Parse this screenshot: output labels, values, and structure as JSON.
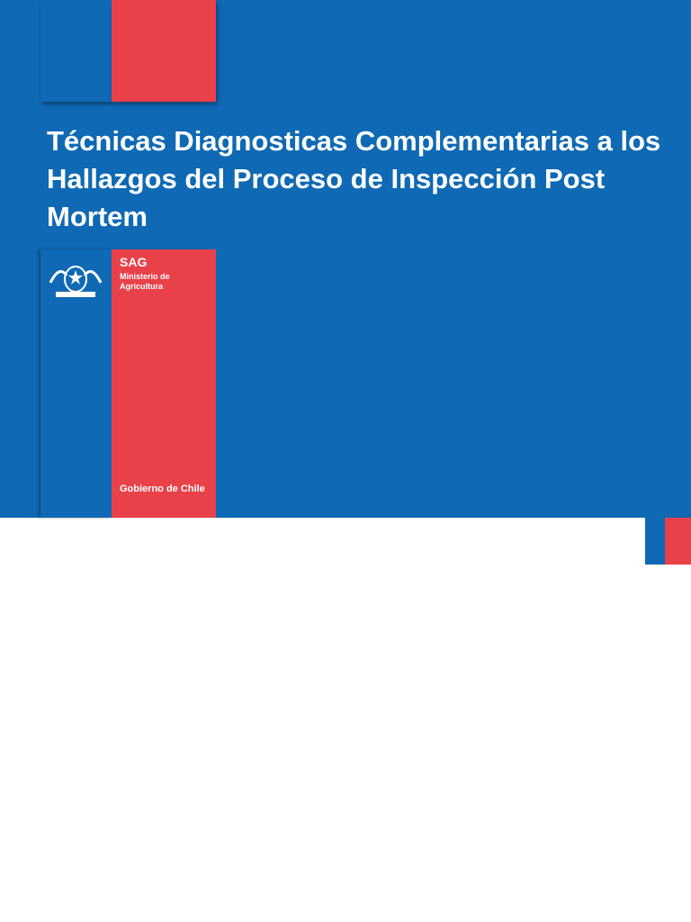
{
  "slide": {
    "title": "Técnicas Diagnosticas Complementarias a los Hallazgos del Proceso de Inspección Post Mortem",
    "logo": {
      "agency": "SAG",
      "ministry": "Ministerio de Agricultura",
      "government": "Gobierno de Chile"
    }
  }
}
